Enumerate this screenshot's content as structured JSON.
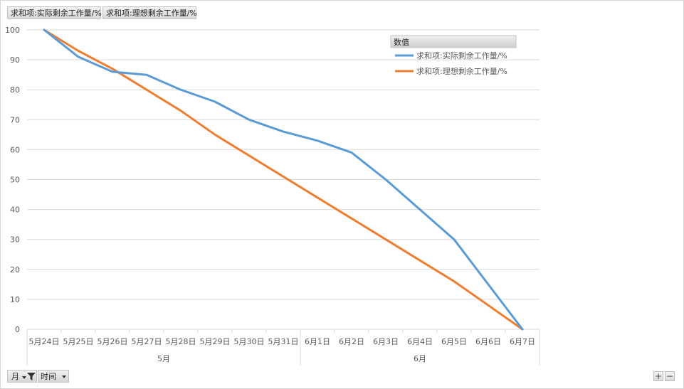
{
  "field_buttons": [
    "求和项:实际剩余工作量/%",
    "求和项:理想剩余工作量/%"
  ],
  "legend": {
    "title": "数值"
  },
  "bottom": {
    "field_month": "月",
    "field_time": "时间"
  },
  "zoom": {
    "plus": "+",
    "minus": "−"
  },
  "colors": {
    "actual": "#5b9bd5",
    "ideal": "#ed7d31",
    "grid": "#d9d9d9",
    "axis_text": "#595959"
  },
  "chart_data": {
    "type": "line",
    "categories": [
      "5月24日",
      "5月25日",
      "5月26日",
      "5月27日",
      "5月28日",
      "5月29日",
      "5月30日",
      "5月31日",
      "6月1日",
      "6月2日",
      "6月3日",
      "6月4日",
      "6月5日",
      "6月6日",
      "6月7日"
    ],
    "groups": [
      {
        "label": "5月",
        "start": 0,
        "end": 7
      },
      {
        "label": "6月",
        "start": 8,
        "end": 14
      }
    ],
    "series": [
      {
        "name": "求和项:实际剩余工作量/%",
        "color": "#5b9bd5",
        "values": [
          100,
          91,
          86,
          85,
          80,
          76,
          70,
          66,
          63,
          59,
          50,
          40,
          30,
          15,
          0
        ]
      },
      {
        "name": "求和项:理想剩余工作量/%",
        "color": "#ed7d31",
        "values": [
          100,
          93,
          87,
          80,
          73,
          65,
          58,
          51,
          44,
          37,
          30,
          23,
          16,
          8,
          0
        ]
      }
    ],
    "ylim": [
      0,
      100
    ],
    "yticks": [
      0,
      10,
      20,
      30,
      40,
      50,
      60,
      70,
      80,
      90,
      100
    ],
    "grid": true,
    "legend_position": "top-right"
  }
}
